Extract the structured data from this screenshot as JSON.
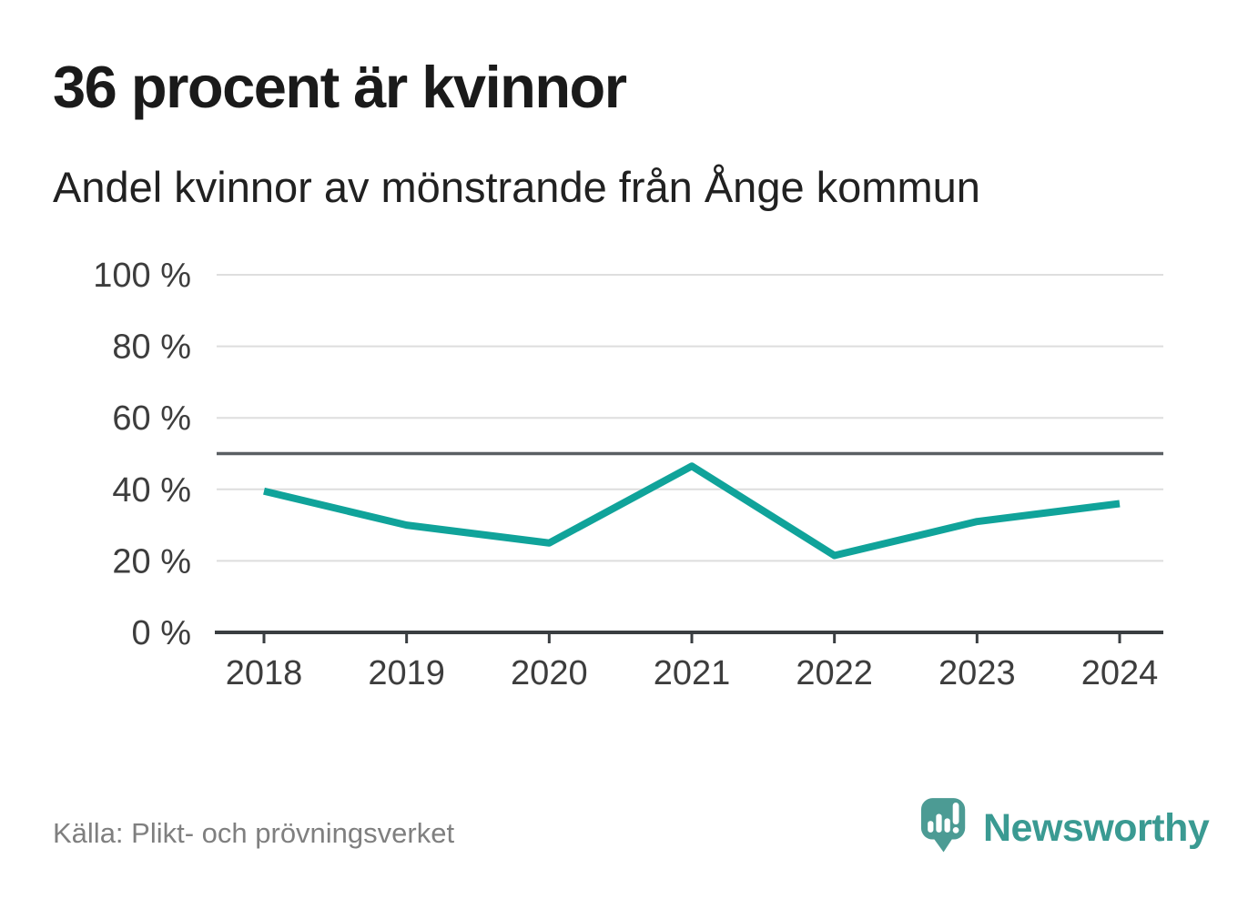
{
  "header": {
    "title": "36 procent är kvinnor",
    "subtitle": "Andel kvinnor av mönstrande från Ånge kommun"
  },
  "footer": {
    "source": "Källa: Plikt- och prövningsverket",
    "brand_name": "Newsworthy"
  },
  "colors": {
    "line": "#10a39a",
    "grid": "#dedede",
    "reference_line": "#5a5f63",
    "axis": "#3a3e41",
    "text": "#1a1a1a",
    "muted_text": "#7f7f7f",
    "logo_bubble": "#4c9b94",
    "logo_wordmark": "#3a9a92"
  },
  "chart_data": {
    "type": "line",
    "title": "36 procent är kvinnor",
    "subtitle": "Andel kvinnor av mönstrande från Ånge kommun",
    "x": [
      "2018",
      "2019",
      "2020",
      "2021",
      "2022",
      "2023",
      "2024"
    ],
    "series": [
      {
        "name": "Andel kvinnor av mönstrande",
        "values": [
          39.5,
          30,
          25,
          46.5,
          21.5,
          31,
          36
        ]
      }
    ],
    "ylim": [
      0,
      100
    ],
    "yticks": [
      0,
      20,
      40,
      60,
      80,
      100
    ],
    "ytick_labels": [
      "0 %",
      "20 %",
      "40 %",
      "60 %",
      "80 %",
      "100 %"
    ],
    "reference_line_value": 50,
    "grid": true,
    "legend_position": "none",
    "source": "Källa: Plikt- och prövningsverket"
  }
}
